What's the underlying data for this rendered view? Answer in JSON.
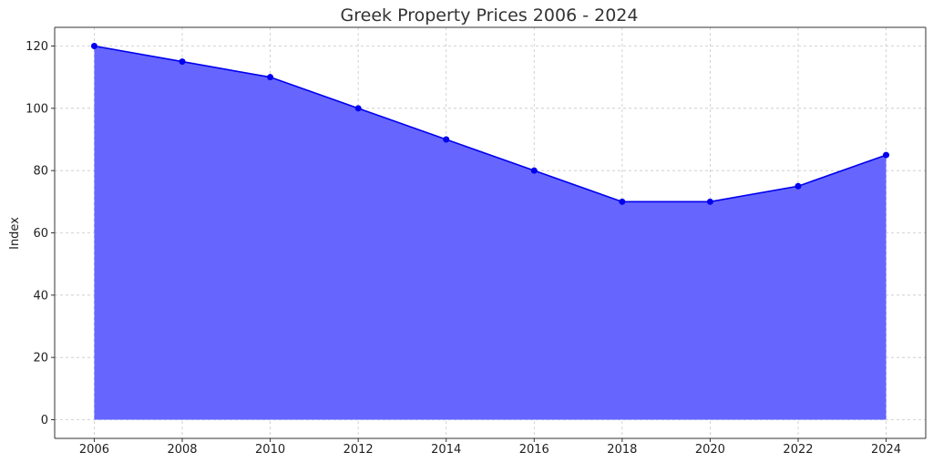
{
  "chart_data": {
    "type": "area",
    "title": "Greek Property Prices 2006 - 2024",
    "xlabel": "",
    "ylabel": "Index",
    "x": [
      2006,
      2008,
      2010,
      2012,
      2014,
      2016,
      2018,
      2020,
      2022,
      2024
    ],
    "xlim": [
      2005.1,
      2024.9
    ],
    "ylim": [
      -6,
      126
    ],
    "yticks": [
      0,
      20,
      40,
      60,
      80,
      100,
      120
    ],
    "grid": true,
    "series": [
      {
        "values": [
          120,
          115,
          110,
          100,
          90,
          80,
          70,
          70,
          75,
          85
        ],
        "line_color": "#0000ee",
        "fill_color": "#6666ff",
        "marker": "circle"
      }
    ]
  }
}
